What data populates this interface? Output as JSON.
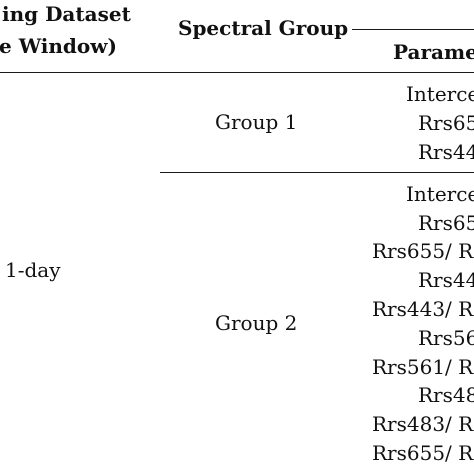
{
  "header": {
    "training_dataset_line1": "ing Dataset",
    "training_dataset_line2": "e Window)",
    "spectral_group": "Spectral Group",
    "parameter": "Parame"
  },
  "body": {
    "window": "1-day",
    "groups": [
      {
        "name": "Group 1",
        "params": [
          "Interce",
          "Rrs65",
          "Rrs44"
        ]
      },
      {
        "name": "Group 2",
        "params": [
          "Interce",
          "Rrs65",
          "Rrs655/ R",
          "Rrs44",
          "Rrs443/ R",
          "Rrs56",
          "Rrs561/ R",
          "Rrs48",
          "Rrs483/ R",
          "Rrs655/ R"
        ]
      }
    ]
  }
}
